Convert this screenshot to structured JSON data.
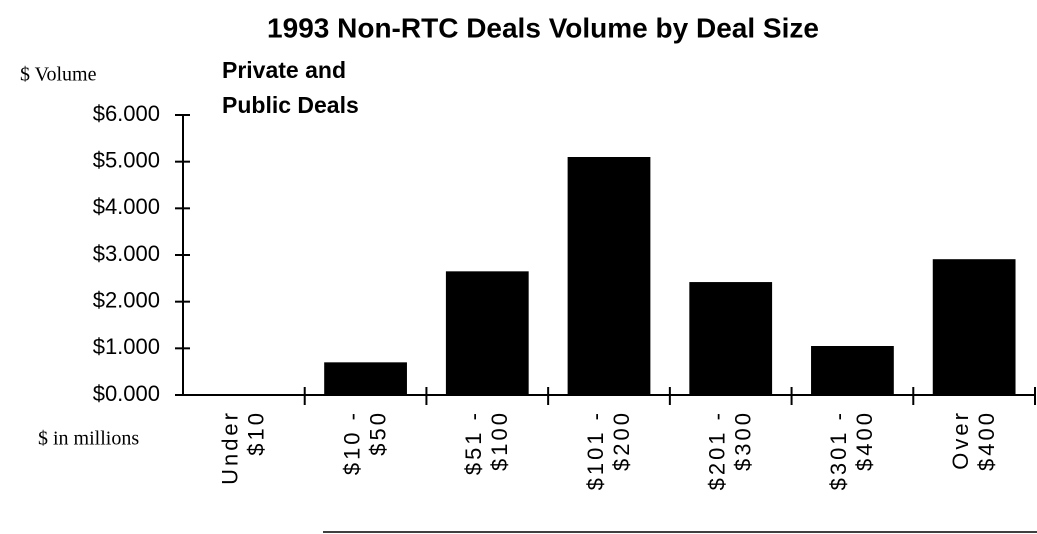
{
  "chart_data": {
    "type": "bar",
    "title": "1993 Non-RTC Deals Volume by Deal Size",
    "subtitle": [
      "Private and",
      "Public Deals"
    ],
    "y_label": "$ Volume",
    "x_label": "$ in millions",
    "categories": [
      [
        "Under",
        "$10"
      ],
      [
        "$10 -",
        "$50"
      ],
      [
        "$51 -",
        "$100"
      ],
      [
        "$101 -",
        "$200"
      ],
      [
        "$201 -",
        "$300"
      ],
      [
        "$301 -",
        "$400"
      ],
      [
        "Over",
        "$400"
      ]
    ],
    "values": [
      0,
      0.7,
      2.65,
      5.1,
      2.42,
      1.05,
      2.91
    ],
    "color": "#000000",
    "ylim": [
      0,
      6
    ],
    "yticks": [
      {
        "value": 0,
        "label": "$0.000"
      },
      {
        "value": 1,
        "label": "$1.000"
      },
      {
        "value": 2,
        "label": "$2.000"
      },
      {
        "value": 3,
        "label": "$3.000"
      },
      {
        "value": 4,
        "label": "$4.000"
      },
      {
        "value": 5,
        "label": "$5.000"
      },
      {
        "value": 6,
        "label": "$6.000"
      }
    ],
    "grid": false
  }
}
